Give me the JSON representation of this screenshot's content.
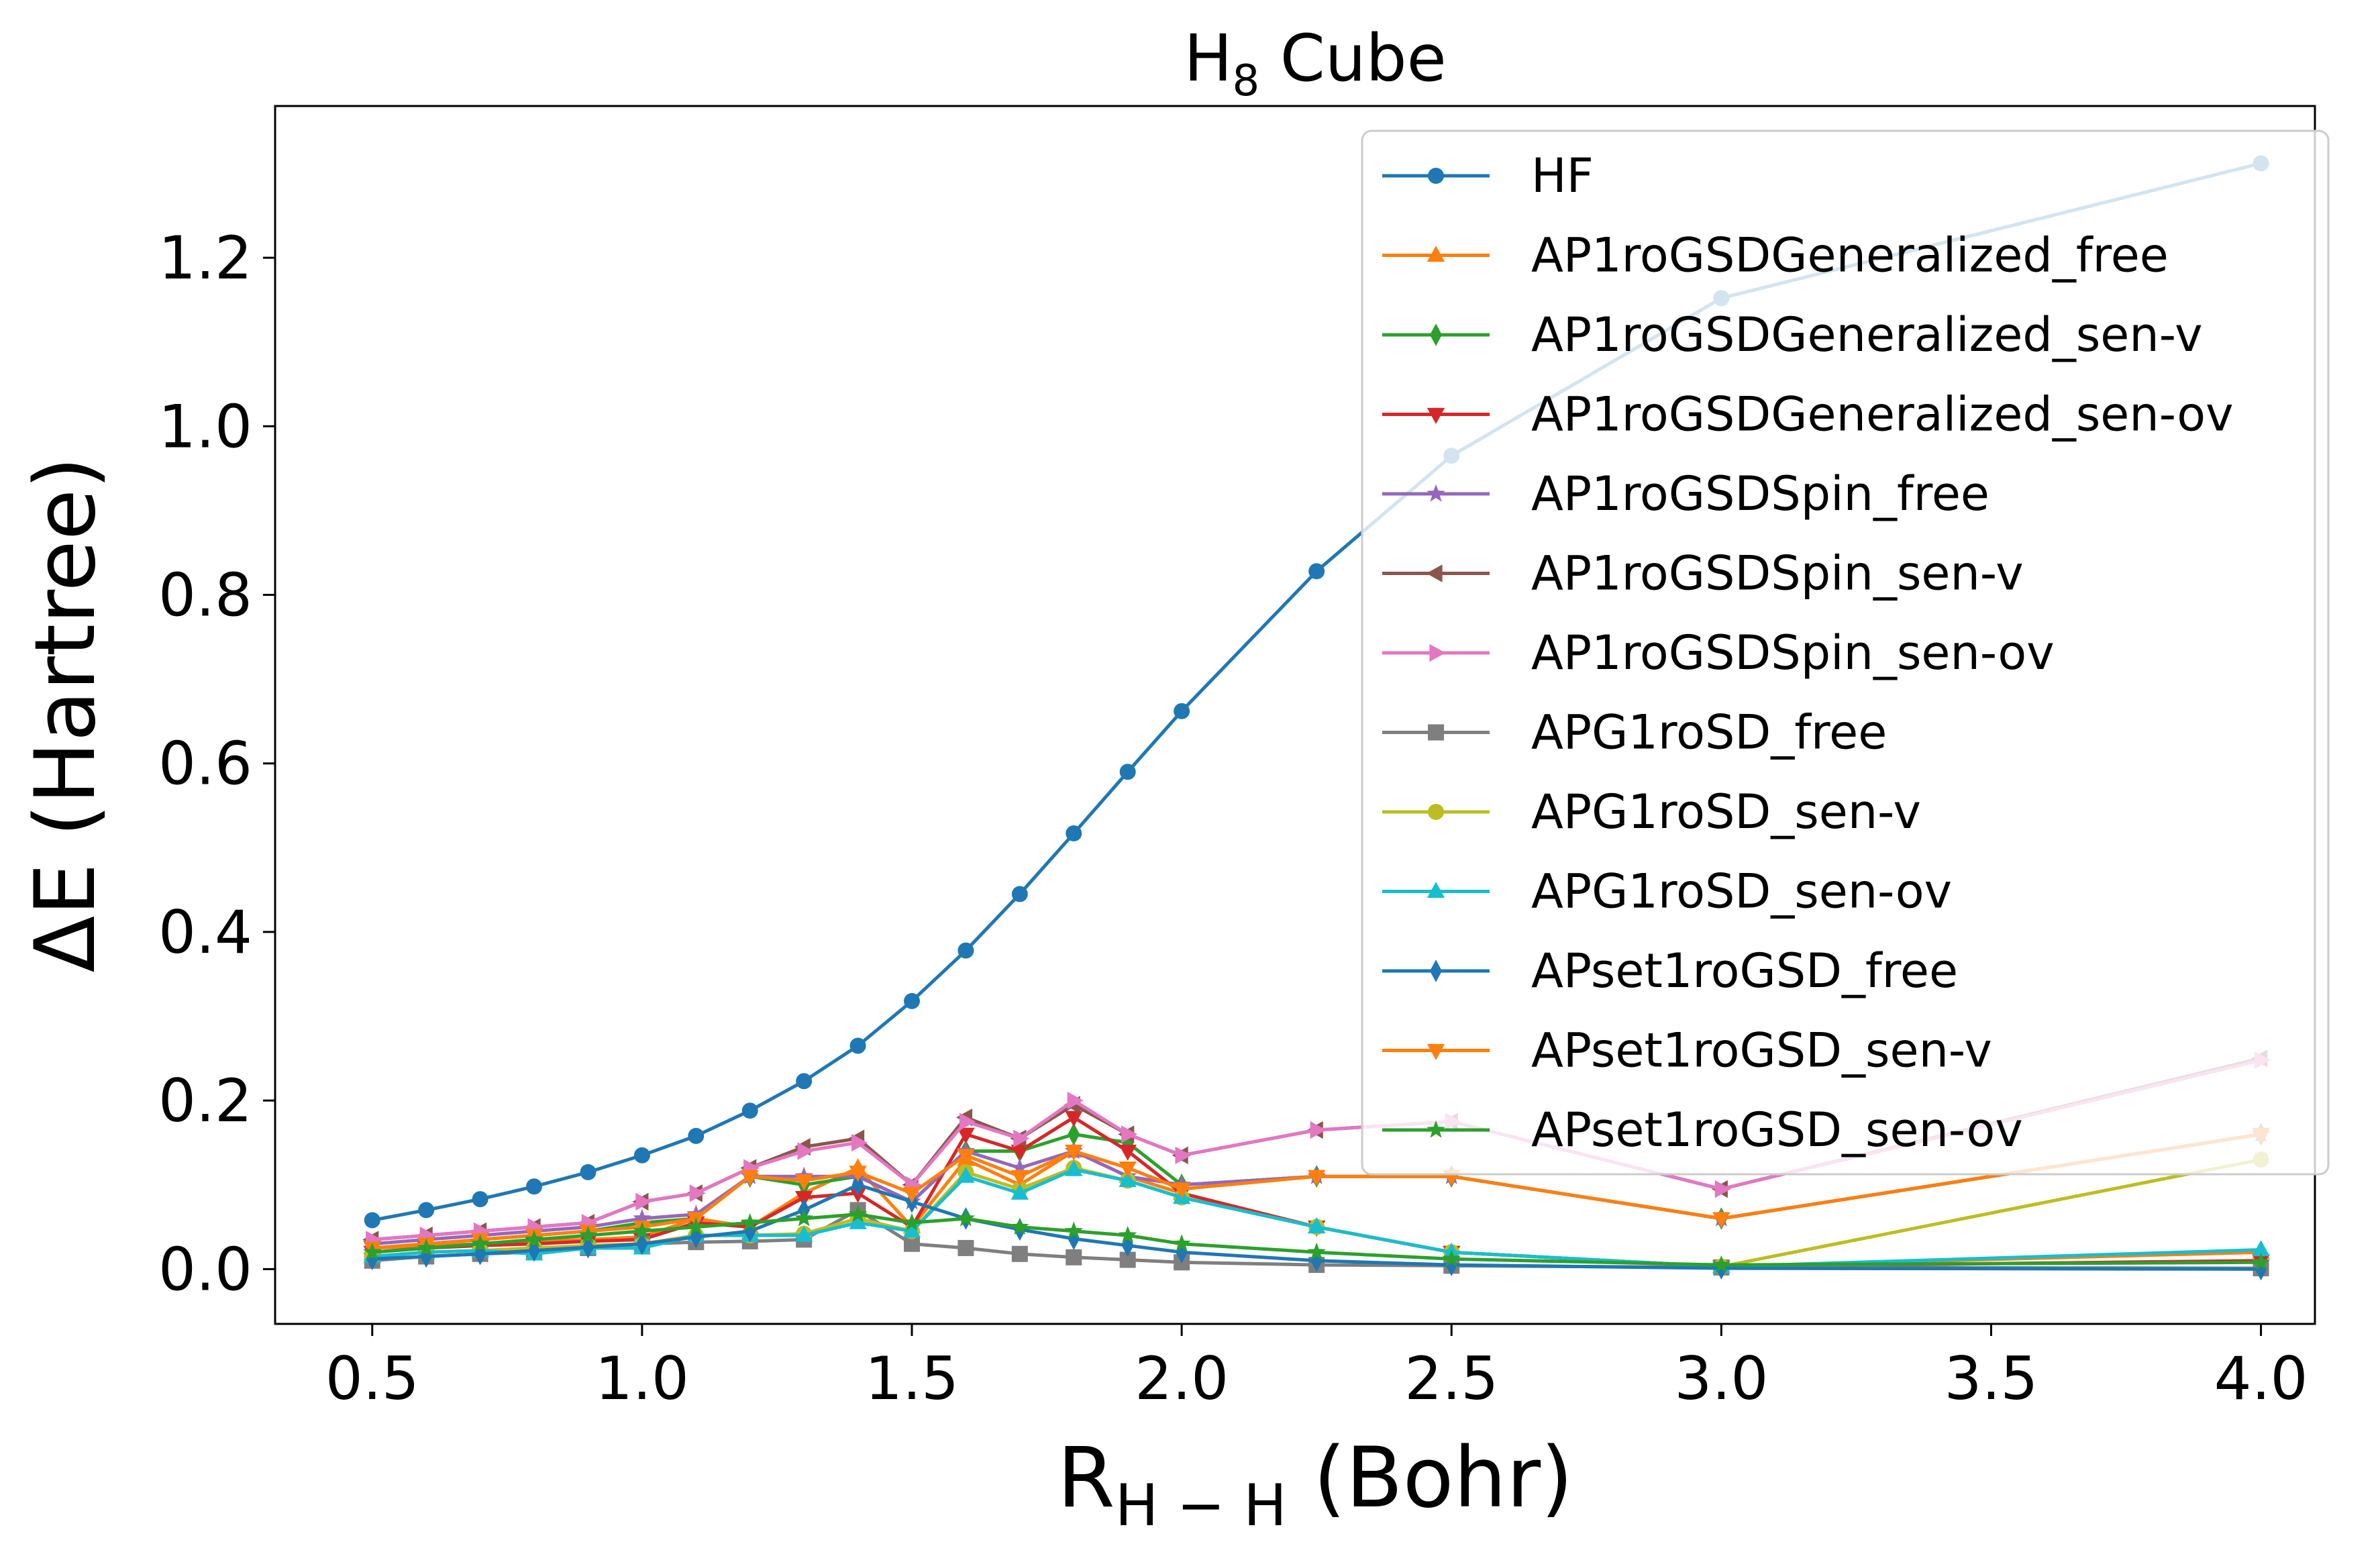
{
  "chart_data": {
    "type": "line",
    "title_main": "H",
    "title_sub": "8",
    "title_rest": " Cube",
    "xlabel_main": "R",
    "xlabel_sub": "H − H",
    "xlabel_rest": " (Bohr)",
    "ylabel": "ΔE (Hartree)",
    "xlim": [
      0.32,
      4.1
    ],
    "ylim": [
      -0.065,
      1.38
    ],
    "xticks": [
      0.5,
      1.0,
      1.5,
      2.0,
      2.5,
      3.0,
      3.5,
      4.0
    ],
    "xtick_labels": [
      "0.5",
      "1.0",
      "1.5",
      "2.0",
      "2.5",
      "3.0",
      "3.5",
      "4.0"
    ],
    "yticks": [
      0.0,
      0.2,
      0.4,
      0.6,
      0.8,
      1.0,
      1.2
    ],
    "ytick_labels": [
      "0.0",
      "0.2",
      "0.4",
      "0.6",
      "0.8",
      "1.0",
      "1.2"
    ],
    "grid": false,
    "legend_position": "top-right",
    "x": [
      0.5,
      0.6,
      0.7,
      0.8,
      0.9,
      1.0,
      1.1,
      1.2,
      1.3,
      1.4,
      1.5,
      1.6,
      1.7,
      1.8,
      1.9,
      2.0,
      2.25,
      2.5,
      3.0,
      4.0
    ],
    "series": [
      {
        "name": "HF",
        "color": "#1f77b4",
        "marker": "circle",
        "values": [
          0.058,
          0.07,
          0.083,
          0.098,
          0.115,
          0.135,
          0.158,
          0.188,
          0.223,
          0.265,
          0.318,
          0.378,
          0.445,
          0.517,
          0.59,
          0.662,
          0.828,
          0.965,
          1.152,
          1.312
        ]
      },
      {
        "name": "AP1roGSDGeneralized_free",
        "color": "#ff7f0e",
        "marker": "triangle-up",
        "values": [
          0.025,
          0.028,
          0.03,
          0.033,
          0.035,
          0.038,
          0.06,
          0.05,
          0.09,
          0.12,
          0.05,
          0.13,
          0.1,
          0.14,
          0.11,
          0.09,
          0.05,
          0.02,
          0.003,
          0.02
        ]
      },
      {
        "name": "AP1roGSDGeneralized_sen-v",
        "color": "#2ca02c",
        "marker": "thin-diamond",
        "values": [
          0.025,
          0.03,
          0.035,
          0.04,
          0.045,
          0.055,
          0.06,
          0.11,
          0.1,
          0.11,
          0.08,
          0.14,
          0.14,
          0.16,
          0.15,
          0.1,
          0.11,
          0.11,
          0.06,
          0.16
        ]
      },
      {
        "name": "AP1roGSDGeneralized_sen-ov",
        "color": "#d62728",
        "marker": "triangle-down",
        "values": [
          0.02,
          0.025,
          0.028,
          0.03,
          0.033,
          0.035,
          0.055,
          0.05,
          0.085,
          0.09,
          0.05,
          0.16,
          0.14,
          0.18,
          0.14,
          0.09,
          0.05,
          0.02,
          0.003,
          0.01
        ]
      },
      {
        "name": "AP1roGSDSpin_free",
        "color": "#9467bd",
        "marker": "star",
        "values": [
          0.03,
          0.035,
          0.04,
          0.045,
          0.05,
          0.06,
          0.065,
          0.11,
          0.11,
          0.11,
          0.08,
          0.14,
          0.12,
          0.14,
          0.11,
          0.1,
          0.11,
          0.11,
          0.06,
          0.16
        ]
      },
      {
        "name": "AP1roGSDSpin_sen-v",
        "color": "#8c564b",
        "marker": "triangle-left",
        "values": [
          0.035,
          0.04,
          0.045,
          0.05,
          0.055,
          0.08,
          0.09,
          0.12,
          0.145,
          0.155,
          0.1,
          0.18,
          0.155,
          0.195,
          0.16,
          0.135,
          0.165,
          0.175,
          0.095,
          0.25
        ]
      },
      {
        "name": "AP1roGSDSpin_sen-ov",
        "color": "#e377c2",
        "marker": "triangle-right",
        "values": [
          0.035,
          0.04,
          0.045,
          0.05,
          0.055,
          0.08,
          0.09,
          0.12,
          0.14,
          0.15,
          0.1,
          0.175,
          0.155,
          0.2,
          0.16,
          0.135,
          0.165,
          0.175,
          0.095,
          0.248
        ]
      },
      {
        "name": "APG1roSD_free",
        "color": "#7f7f7f",
        "marker": "square",
        "values": [
          0.01,
          0.015,
          0.018,
          0.02,
          0.025,
          0.03,
          0.032,
          0.033,
          0.035,
          0.07,
          0.03,
          0.025,
          0.018,
          0.014,
          0.011,
          0.008,
          0.005,
          0.004,
          0.002,
          0.001
        ]
      },
      {
        "name": "APG1roSD_sen-v",
        "color": "#bcbd22",
        "marker": "circle",
        "values": [
          0.015,
          0.02,
          0.022,
          0.025,
          0.028,
          0.03,
          0.04,
          0.04,
          0.042,
          0.06,
          0.045,
          0.115,
          0.095,
          0.12,
          0.105,
          0.085,
          0.05,
          0.02,
          0.003,
          0.13
        ]
      },
      {
        "name": "APG1roSD_sen-ov",
        "color": "#17becf",
        "marker": "triangle-up",
        "values": [
          0.015,
          0.02,
          0.022,
          0.018,
          0.025,
          0.025,
          0.04,
          0.04,
          0.04,
          0.055,
          0.045,
          0.11,
          0.09,
          0.118,
          0.105,
          0.085,
          0.05,
          0.02,
          0.003,
          0.023
        ]
      },
      {
        "name": "APset1roGSD_free",
        "color": "#1f77b4",
        "marker": "thin-diamond",
        "values": [
          0.012,
          0.015,
          0.018,
          0.022,
          0.026,
          0.03,
          0.038,
          0.045,
          0.07,
          0.1,
          0.08,
          0.06,
          0.047,
          0.036,
          0.028,
          0.02,
          0.01,
          0.005,
          0.001,
          0.0
        ]
      },
      {
        "name": "APset1roGSD_sen-v",
        "color": "#ff7f0e",
        "marker": "triangle-down",
        "values": [
          0.025,
          0.03,
          0.035,
          0.04,
          0.045,
          0.05,
          0.06,
          0.11,
          0.105,
          0.115,
          0.09,
          0.135,
          0.11,
          0.14,
          0.12,
          0.095,
          0.11,
          0.11,
          0.06,
          0.16
        ]
      },
      {
        "name": "APset1roGSD_sen-ov",
        "color": "#2ca02c",
        "marker": "star",
        "values": [
          0.02,
          0.025,
          0.03,
          0.035,
          0.04,
          0.045,
          0.05,
          0.055,
          0.06,
          0.065,
          0.055,
          0.06,
          0.05,
          0.045,
          0.04,
          0.03,
          0.02,
          0.012,
          0.005,
          0.008
        ]
      }
    ]
  }
}
